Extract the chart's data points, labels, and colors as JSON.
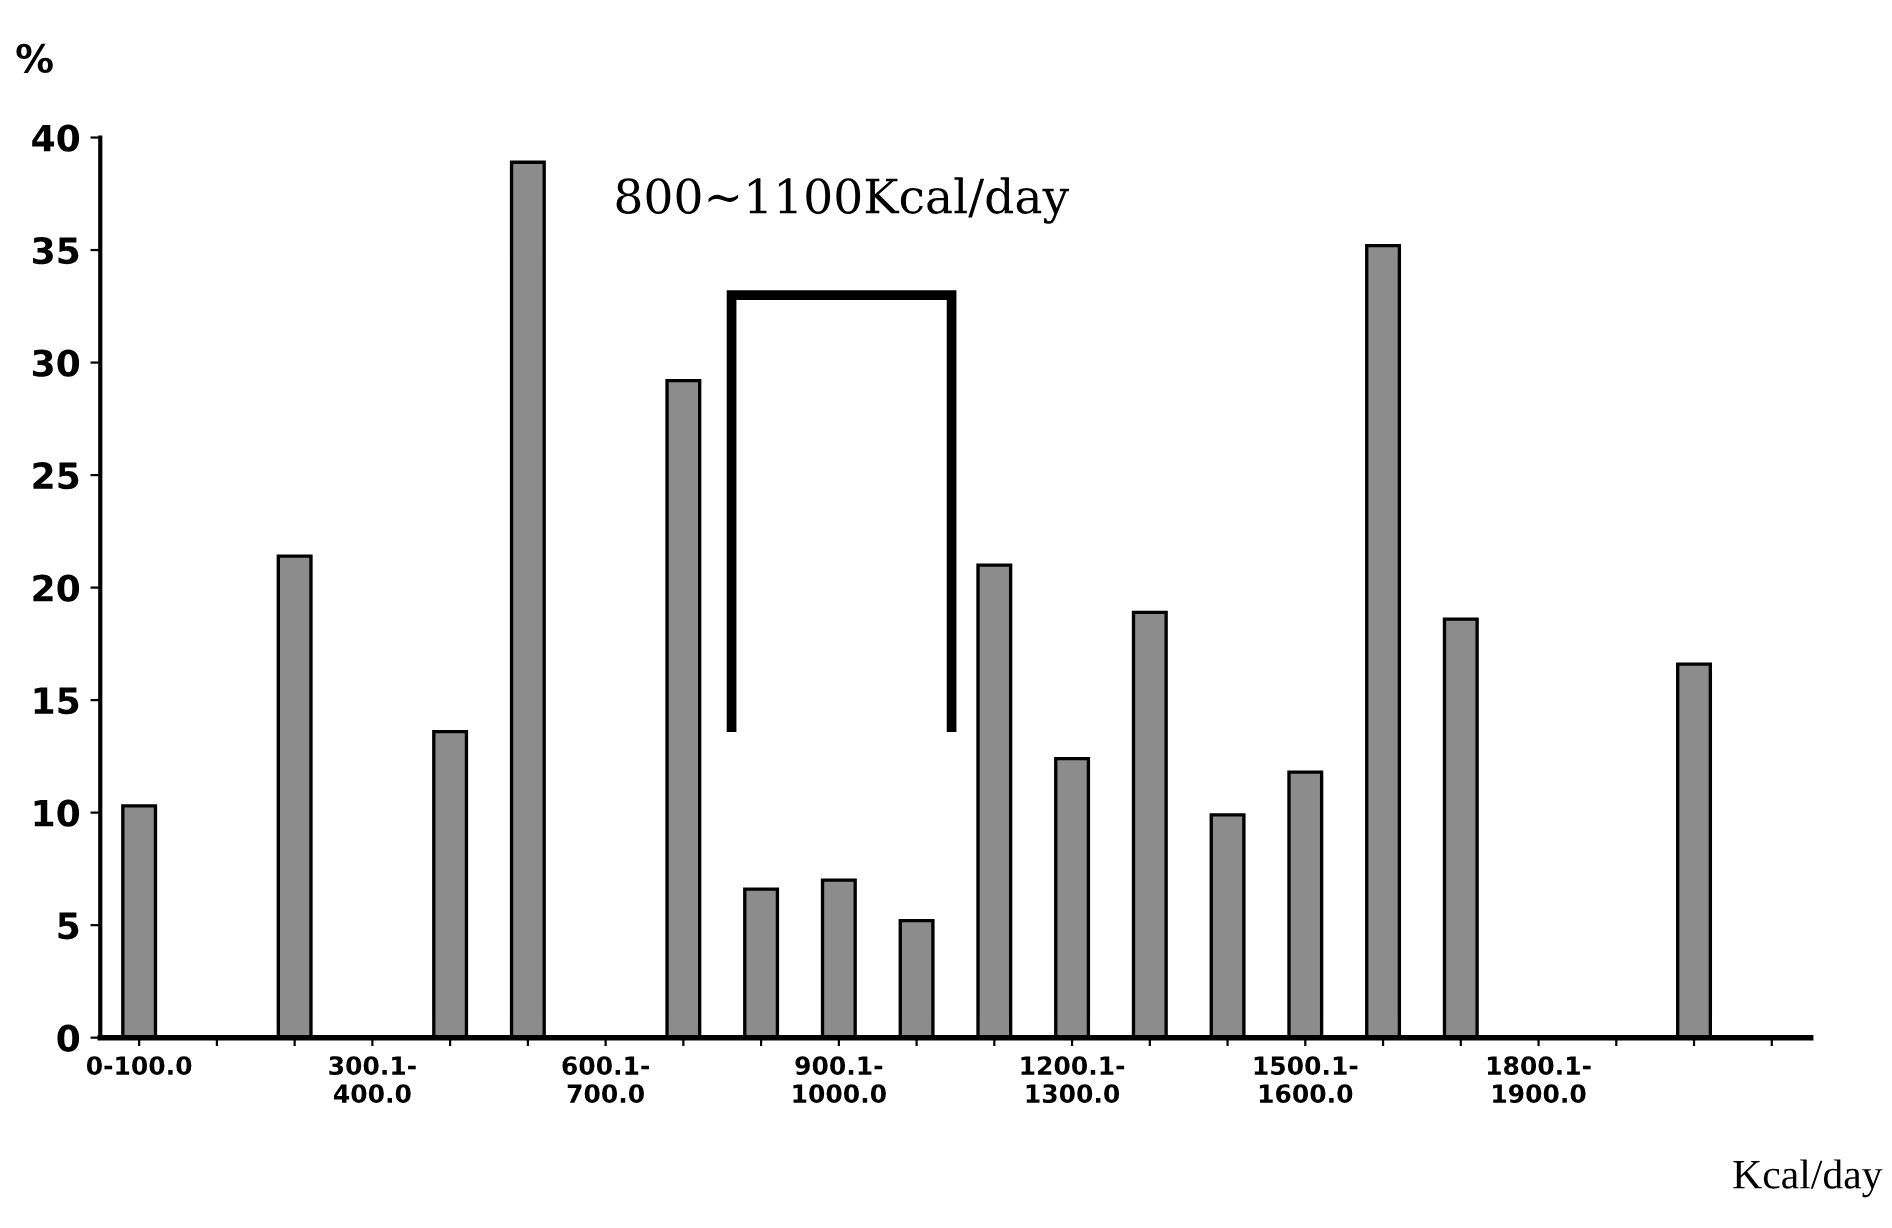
{
  "chart_data": {
    "type": "bar",
    "categories": [
      "0-100.0",
      null,
      null,
      "300.1-\n400.0",
      null,
      null,
      "600.1-\n700.0",
      null,
      null,
      "900.1-\n1000.0",
      null,
      null,
      "1200.1-\n1300.0",
      null,
      null,
      "1500.1-\n1600.0",
      null,
      null,
      "1800.1-\n1900.0",
      null,
      null,
      null
    ],
    "values": [
      10.3,
      null,
      21.4,
      null,
      13.6,
      38.9,
      null,
      29.2,
      6.6,
      7.0,
      5.2,
      21.0,
      12.4,
      18.9,
      9.9,
      11.8,
      35.2,
      18.6,
      null,
      null,
      16.6,
      null
    ],
    "color": "#8c8c8c",
    "ylabel": "%",
    "xlabel": "Kcal/day",
    "annotations": [
      "800∼1100Kcal/day"
    ],
    "ylim": [
      0,
      40
    ],
    "yticks": [
      0,
      5,
      10,
      15,
      20,
      25,
      30,
      35,
      40
    ],
    "grid": false,
    "legend": false
  }
}
